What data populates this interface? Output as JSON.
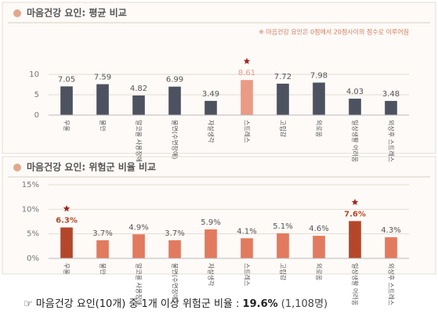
{
  "chart_data": [
    {
      "type": "bar",
      "title": "마음건강 요인: 평균 비교",
      "note": "※ 마음건강 요인은 0점에서 20점사이의 점수로 이루어짐",
      "categories": [
        "우울",
        "불안",
        "알코올 사용장애",
        "불면(수면장애)",
        "자살생각",
        "스트레스",
        "고립감",
        "외로움",
        "일상생활 어려움",
        "외상후 스트레스"
      ],
      "values": [
        7.05,
        7.59,
        4.82,
        6.99,
        3.49,
        8.61,
        7.72,
        7.98,
        4.03,
        3.48
      ],
      "color": "#4d5260",
      "highlight_color": "#eb9a85",
      "highlight": [
        5
      ],
      "ylim": [
        0,
        10
      ],
      "yticks": [
        0,
        5,
        10
      ],
      "grid": true
    },
    {
      "type": "bar",
      "title": "마음건강 요인: 위험군 비율 비교",
      "categories": [
        "우울",
        "불안",
        "알코올 사용장애",
        "불면(수면장애)",
        "자살생각",
        "스트레스",
        "고립감",
        "외로움",
        "일상생활 어려움",
        "외상후 스트레스"
      ],
      "values": [
        6.3,
        3.7,
        4.9,
        3.7,
        5.9,
        4.1,
        5.1,
        4.6,
        7.6,
        4.3
      ],
      "value_labels": [
        "6.3%",
        "3.7%",
        "4.9%",
        "3.7%",
        "5.9%",
        "4.1%",
        "5.1%",
        "4.6%",
        "7.6%",
        "4.3%"
      ],
      "color": "#e27a5e",
      "highlight_color": "#b4472a",
      "highlight": [
        0,
        8
      ],
      "ylim": [
        0,
        15
      ],
      "yticks": [
        {
          "value": 0,
          "label": "0%"
        },
        {
          "value": 5,
          "label": "5%"
        },
        {
          "value": 10,
          "label": "10%"
        },
        {
          "value": 15,
          "label": "15%"
        }
      ],
      "grid": true
    }
  ],
  "footer": {
    "text": "☞ 마음건강 요인(10개) 중 1개 이상 위험군 비율 : ",
    "highlight": "19.6%",
    "count": " (1,108명)"
  }
}
